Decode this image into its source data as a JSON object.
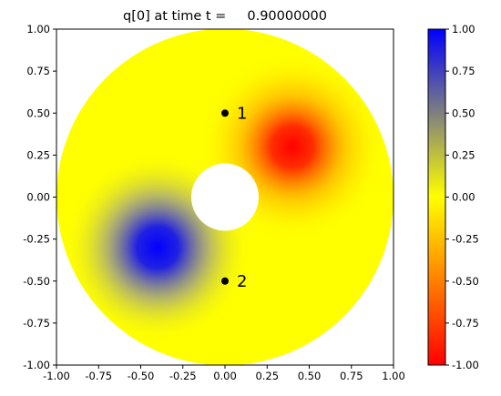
{
  "chart_data": {
    "type": "heatmap",
    "title": "q[0] at time t =     0.90000000",
    "xlim": [
      -1.0,
      1.0
    ],
    "ylim": [
      -1.0,
      1.0
    ],
    "x_ticks": [
      "-1.00",
      "-0.75",
      "-0.50",
      "-0.25",
      "0.00",
      "0.25",
      "0.50",
      "0.75",
      "1.00"
    ],
    "y_ticks": [
      "-1.00",
      "-0.75",
      "-0.50",
      "-0.25",
      "0.00",
      "0.25",
      "0.50",
      "0.75",
      "1.00"
    ],
    "domain": {
      "shape": "annulus",
      "outer_radius": 1.0,
      "inner_radius": 0.2,
      "center": [
        0.0,
        0.0
      ]
    },
    "background_value": 0.0,
    "blobs": [
      {
        "center": [
          0.4,
          0.3
        ],
        "peak_value": -1.0,
        "color_at_peak": "#ff0000"
      },
      {
        "center": [
          -0.4,
          -0.3
        ],
        "peak_value": 1.0,
        "color_at_peak": "#0000ff"
      }
    ],
    "annotations": [
      {
        "label": "1",
        "point": [
          0.0,
          0.5
        ]
      },
      {
        "label": "2",
        "point": [
          0.0,
          -0.5
        ]
      }
    ],
    "colorbar": {
      "range": [
        -1.0,
        1.0
      ],
      "ticks": [
        "1.00",
        "0.75",
        "0.50",
        "0.25",
        "0.00",
        "-0.25",
        "-0.50",
        "-0.75",
        "-1.00"
      ],
      "colors": {
        "min": "#ff0000",
        "mid": "#ffff00",
        "max": "#0000ff"
      }
    }
  }
}
